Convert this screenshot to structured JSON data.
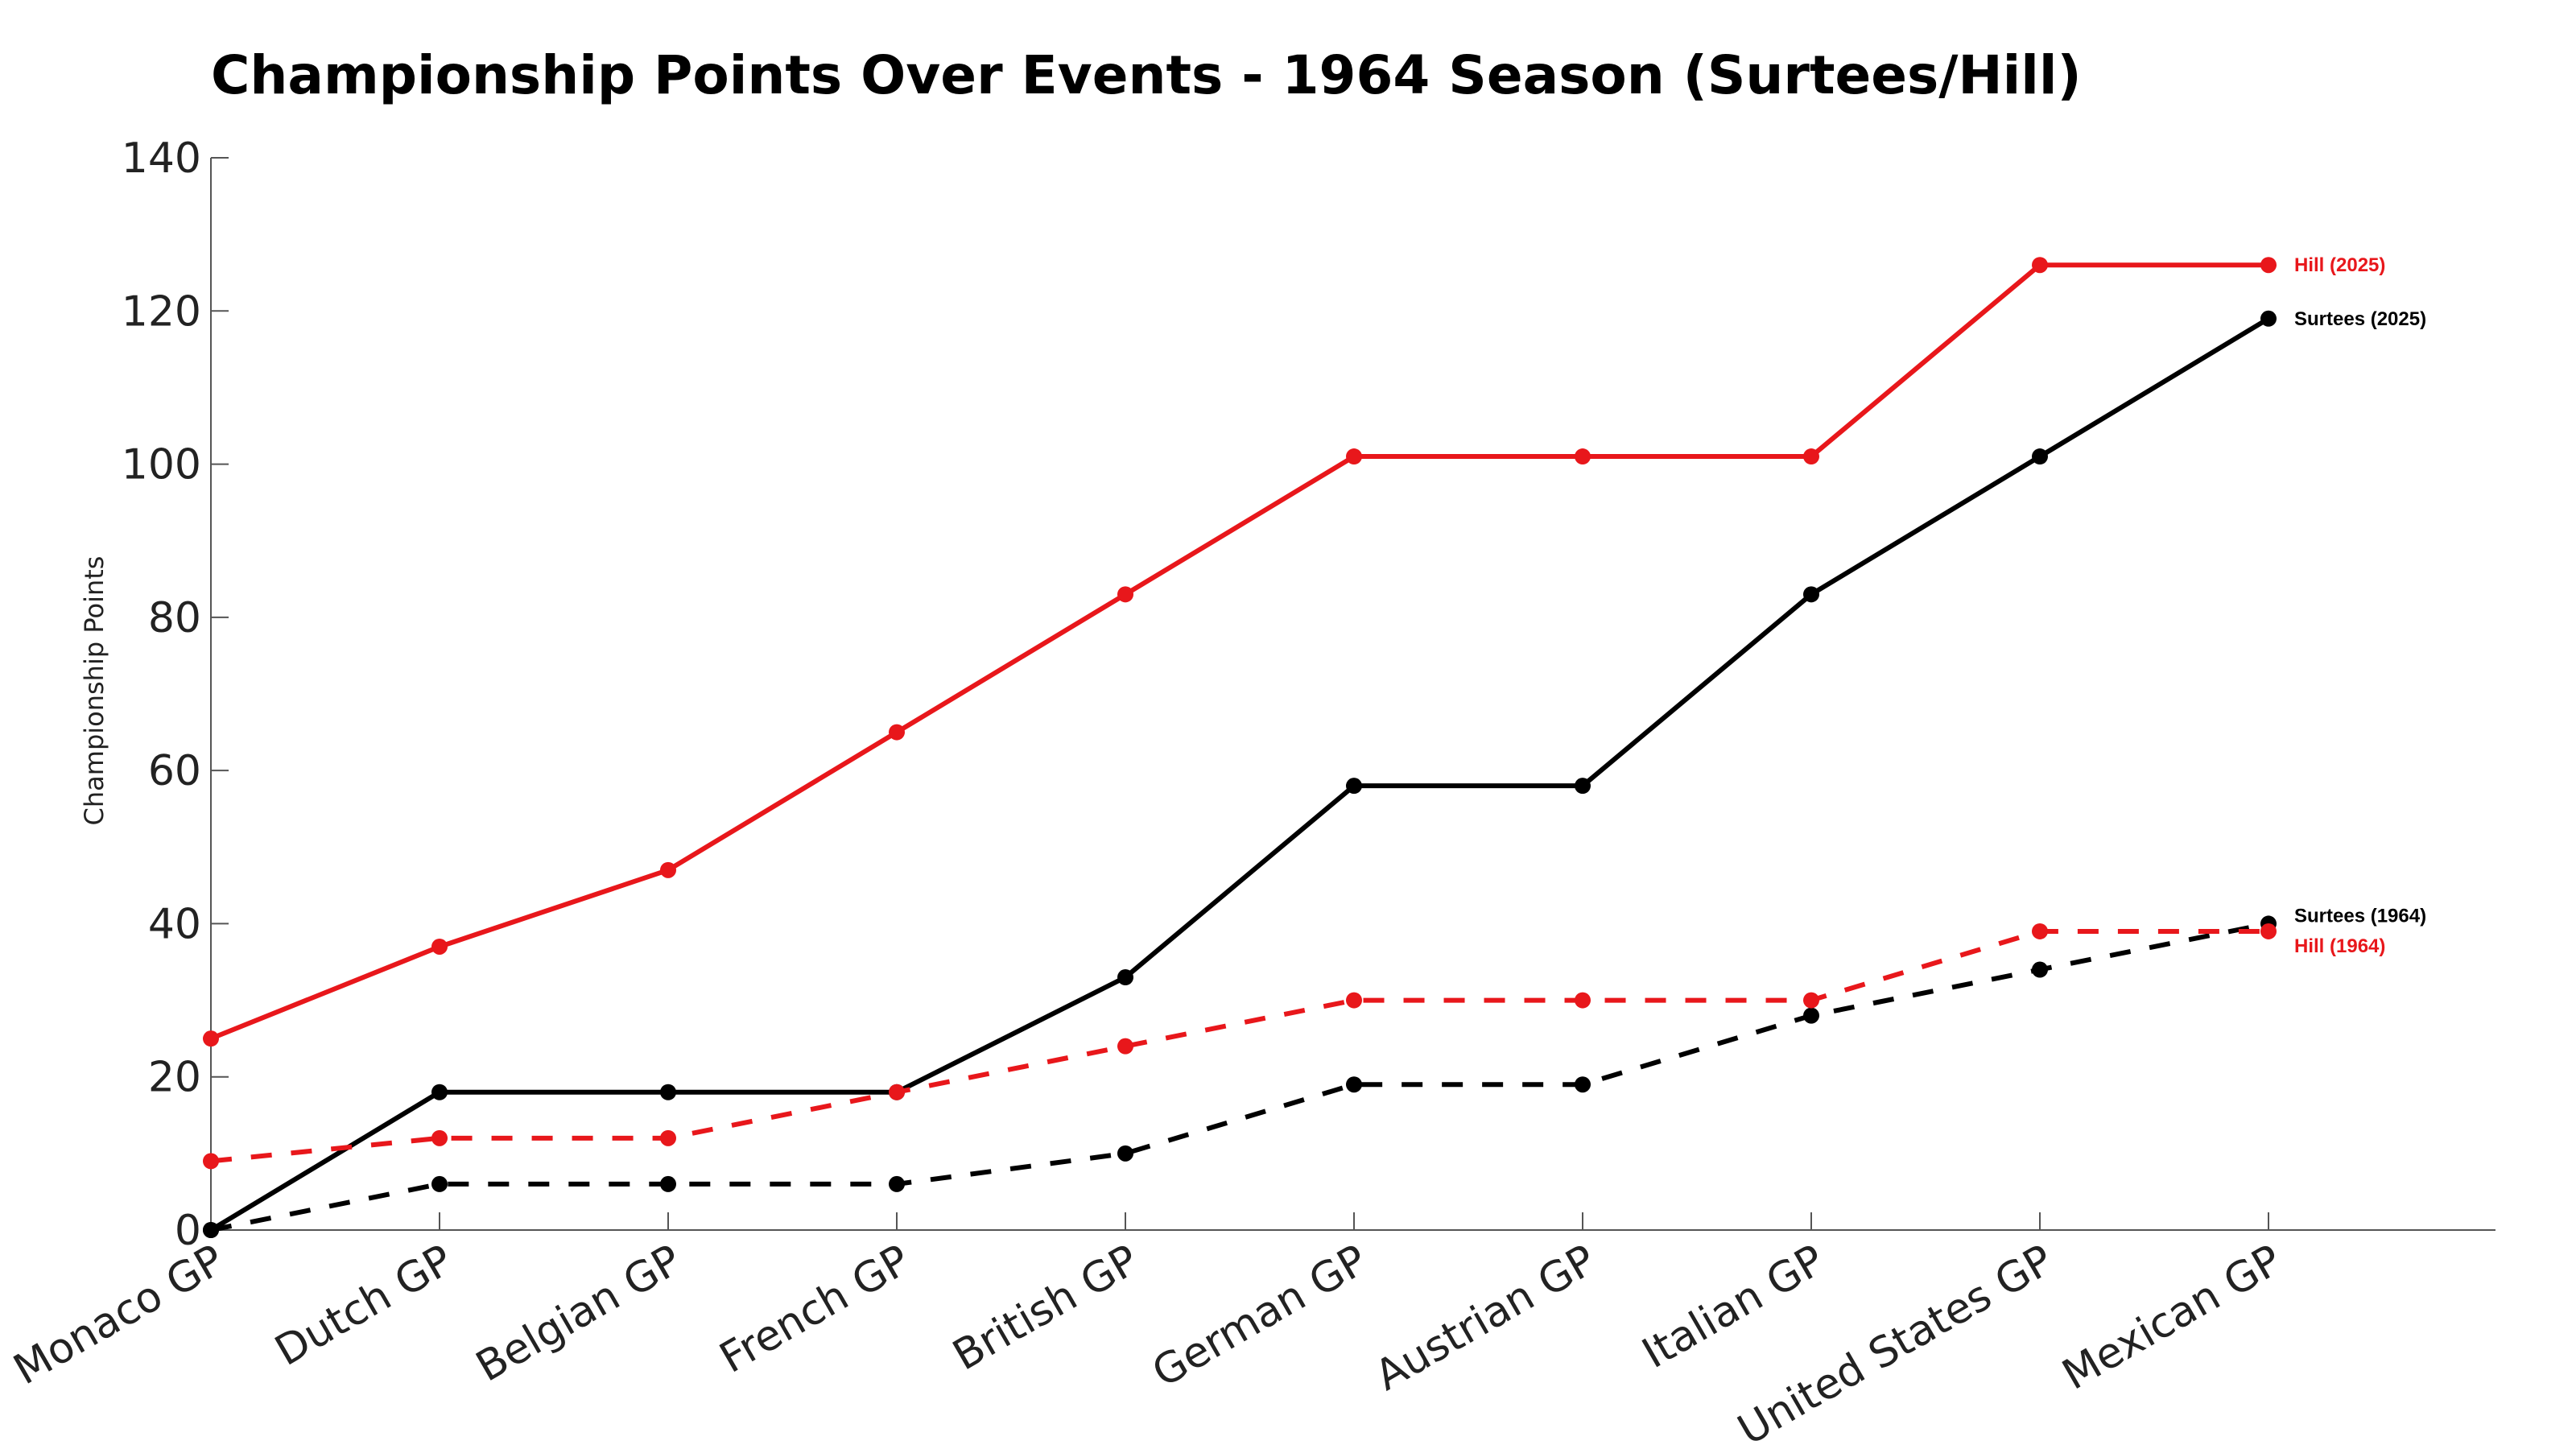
{
  "chart_data": {
    "type": "line",
    "title": "Championship Points Over Events - 1964 Season (Surtees/Hill)",
    "xlabel": "",
    "ylabel": "Championship Points",
    "ylim": [
      0,
      140
    ],
    "yticks": [
      0,
      20,
      40,
      60,
      80,
      100,
      120,
      140
    ],
    "grid": false,
    "categories": [
      "Monaco GP",
      "Dutch GP",
      "Belgian GP",
      "French GP",
      "British GP",
      "German GP",
      "Austrian GP",
      "Italian GP",
      "United States GP",
      "Mexican GP"
    ],
    "series": [
      {
        "name": "Hill (2025)",
        "color": "#e8171b",
        "dash": "solid",
        "values": [
          25,
          37,
          47,
          65,
          83,
          101,
          101,
          101,
          126,
          126
        ]
      },
      {
        "name": "Surtees (2025)",
        "color": "#000000",
        "dash": "solid",
        "values": [
          0,
          18,
          18,
          18,
          33,
          58,
          58,
          83,
          101,
          119
        ]
      },
      {
        "name": "Surtees (1964)",
        "color": "#000000",
        "dash": "dashed",
        "values": [
          0,
          6,
          6,
          6,
          10,
          19,
          19,
          28,
          34,
          40
        ]
      },
      {
        "name": "Hill (1964)",
        "color": "#e8171b",
        "dash": "dashed",
        "values": [
          9,
          12,
          12,
          18,
          24,
          30,
          30,
          30,
          39,
          39
        ]
      }
    ]
  }
}
